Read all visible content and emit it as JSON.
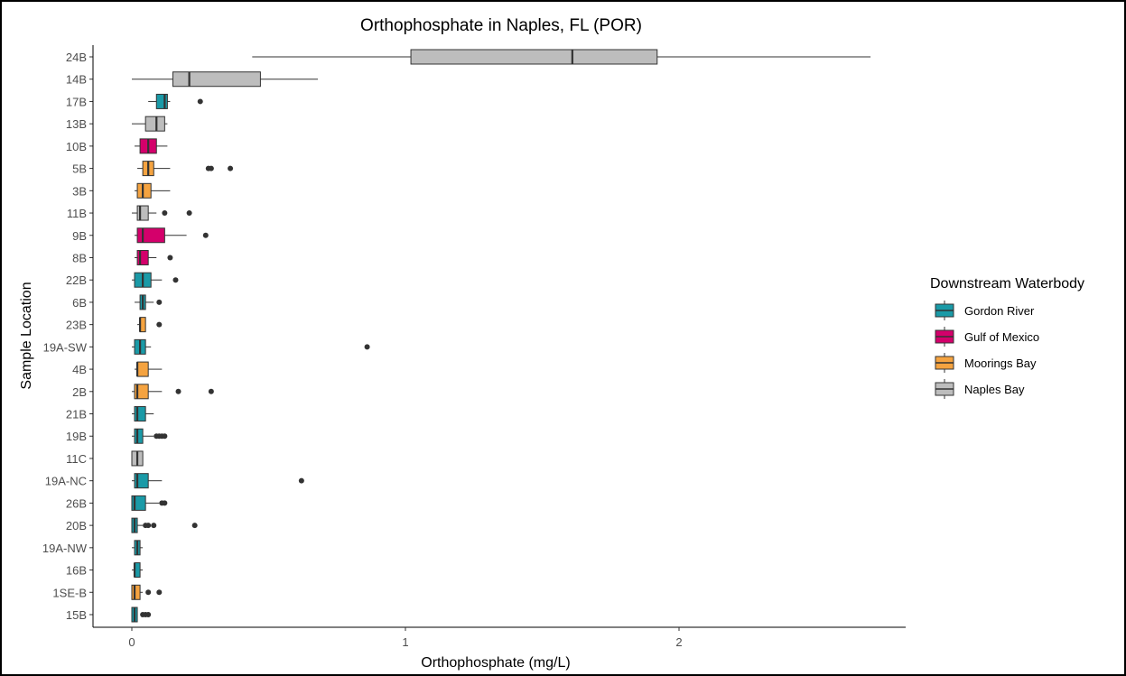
{
  "chart_data": {
    "type": "boxplot",
    "orientation": "horizontal",
    "title": "Orthophosphate in Naples, FL (POR)",
    "xlabel": "Orthophosphate (mg/L)",
    "ylabel": "Sample Location",
    "xlim": [
      -0.1,
      2.83
    ],
    "x_ticks": [
      0,
      1,
      2
    ],
    "grid": false,
    "legend": {
      "title": "Downstream Waterbody",
      "position": "right",
      "entries": [
        {
          "name": "Gordon River",
          "color": "#1a9aa7"
        },
        {
          "name": "Gulf of Mexico",
          "color": "#d4006b"
        },
        {
          "name": "Moorings Bay",
          "color": "#f5a340"
        },
        {
          "name": "Naples Bay",
          "color": "#bdbdbd"
        }
      ]
    },
    "categories": [
      "24B",
      "14B",
      "17B",
      "13B",
      "10B",
      "5B",
      "3B",
      "11B",
      "9B",
      "8B",
      "22B",
      "6B",
      "23B",
      "19A-SW",
      "4B",
      "2B",
      "21B",
      "19B",
      "11C",
      "19A-NC",
      "26B",
      "20B",
      "19A-NW",
      "16B",
      "1SE-B",
      "15B"
    ],
    "boxes": [
      {
        "label": "24B",
        "group": "Naples Bay",
        "min": 0.44,
        "q1": 1.02,
        "median": 1.61,
        "q3": 1.92,
        "max": 2.7,
        "outliers": []
      },
      {
        "label": "14B",
        "group": "Naples Bay",
        "min": 0.0,
        "q1": 0.15,
        "median": 0.21,
        "q3": 0.47,
        "max": 0.68,
        "outliers": []
      },
      {
        "label": "17B",
        "group": "Gordon River",
        "min": 0.06,
        "q1": 0.09,
        "median": 0.12,
        "q3": 0.13,
        "max": 0.14,
        "outliers": [
          0.25
        ]
      },
      {
        "label": "13B",
        "group": "Naples Bay",
        "min": 0.0,
        "q1": 0.05,
        "median": 0.09,
        "q3": 0.12,
        "max": 0.13,
        "outliers": []
      },
      {
        "label": "10B",
        "group": "Gulf of Mexico",
        "min": 0.01,
        "q1": 0.03,
        "median": 0.06,
        "q3": 0.09,
        "max": 0.13,
        "outliers": []
      },
      {
        "label": "5B",
        "group": "Moorings Bay",
        "min": 0.02,
        "q1": 0.04,
        "median": 0.06,
        "q3": 0.08,
        "max": 0.14,
        "outliers": [
          0.28,
          0.29,
          0.36
        ]
      },
      {
        "label": "3B",
        "group": "Moorings Bay",
        "min": 0.01,
        "q1": 0.02,
        "median": 0.04,
        "q3": 0.07,
        "max": 0.14,
        "outliers": []
      },
      {
        "label": "11B",
        "group": "Naples Bay",
        "min": 0.0,
        "q1": 0.02,
        "median": 0.03,
        "q3": 0.06,
        "max": 0.09,
        "outliers": [
          0.12,
          0.21
        ]
      },
      {
        "label": "9B",
        "group": "Gulf of Mexico",
        "min": 0.01,
        "q1": 0.02,
        "median": 0.04,
        "q3": 0.12,
        "max": 0.2,
        "outliers": [
          0.27
        ]
      },
      {
        "label": "8B",
        "group": "Gulf of Mexico",
        "min": 0.01,
        "q1": 0.02,
        "median": 0.03,
        "q3": 0.06,
        "max": 0.09,
        "outliers": [
          0.14
        ]
      },
      {
        "label": "22B",
        "group": "Gordon River",
        "min": 0.0,
        "q1": 0.01,
        "median": 0.04,
        "q3": 0.07,
        "max": 0.11,
        "outliers": [
          0.16
        ]
      },
      {
        "label": "6B",
        "group": "Gordon River",
        "min": 0.01,
        "q1": 0.03,
        "median": 0.04,
        "q3": 0.05,
        "max": 0.08,
        "outliers": [
          0.1
        ]
      },
      {
        "label": "23B",
        "group": "Moorings Bay",
        "min": 0.02,
        "q1": 0.03,
        "median": 0.03,
        "q3": 0.05,
        "max": 0.05,
        "outliers": [
          0.1
        ]
      },
      {
        "label": "19A-SW",
        "group": "Gordon River",
        "min": 0.0,
        "q1": 0.01,
        "median": 0.03,
        "q3": 0.05,
        "max": 0.07,
        "outliers": [
          0.86
        ]
      },
      {
        "label": "4B",
        "group": "Moorings Bay",
        "min": 0.01,
        "q1": 0.02,
        "median": 0.02,
        "q3": 0.06,
        "max": 0.11,
        "outliers": []
      },
      {
        "label": "2B",
        "group": "Moorings Bay",
        "min": 0.0,
        "q1": 0.01,
        "median": 0.02,
        "q3": 0.06,
        "max": 0.11,
        "outliers": [
          0.17,
          0.29
        ]
      },
      {
        "label": "21B",
        "group": "Gordon River",
        "min": 0.0,
        "q1": 0.01,
        "median": 0.02,
        "q3": 0.05,
        "max": 0.08,
        "outliers": []
      },
      {
        "label": "19B",
        "group": "Gordon River",
        "min": 0.0,
        "q1": 0.01,
        "median": 0.02,
        "q3": 0.04,
        "max": 0.08,
        "outliers": [
          0.09,
          0.1,
          0.11,
          0.12
        ]
      },
      {
        "label": "11C",
        "group": "Naples Bay",
        "min": 0.0,
        "q1": 0.0,
        "median": 0.02,
        "q3": 0.04,
        "max": 0.04,
        "outliers": []
      },
      {
        "label": "19A-NC",
        "group": "Gordon River",
        "min": 0.0,
        "q1": 0.01,
        "median": 0.02,
        "q3": 0.06,
        "max": 0.11,
        "outliers": [
          0.62
        ]
      },
      {
        "label": "26B",
        "group": "Gordon River",
        "min": 0.0,
        "q1": 0.0,
        "median": 0.01,
        "q3": 0.05,
        "max": 0.1,
        "outliers": [
          0.11,
          0.12
        ]
      },
      {
        "label": "20B",
        "group": "Gordon River",
        "min": 0.0,
        "q1": 0.0,
        "median": 0.01,
        "q3": 0.02,
        "max": 0.04,
        "outliers": [
          0.05,
          0.06,
          0.08,
          0.23
        ]
      },
      {
        "label": "19A-NW",
        "group": "Gordon River",
        "min": 0.0,
        "q1": 0.01,
        "median": 0.02,
        "q3": 0.03,
        "max": 0.04,
        "outliers": []
      },
      {
        "label": "16B",
        "group": "Gordon River",
        "min": 0.0,
        "q1": 0.01,
        "median": 0.01,
        "q3": 0.03,
        "max": 0.04,
        "outliers": []
      },
      {
        "label": "1SE-B",
        "group": "Moorings Bay",
        "min": 0.0,
        "q1": 0.0,
        "median": 0.01,
        "q3": 0.03,
        "max": 0.04,
        "outliers": [
          0.06,
          0.1
        ]
      },
      {
        "label": "15B",
        "group": "Gordon River",
        "min": 0.0,
        "q1": 0.0,
        "median": 0.01,
        "q3": 0.02,
        "max": 0.02,
        "outliers": [
          0.04,
          0.05,
          0.06
        ]
      }
    ]
  }
}
